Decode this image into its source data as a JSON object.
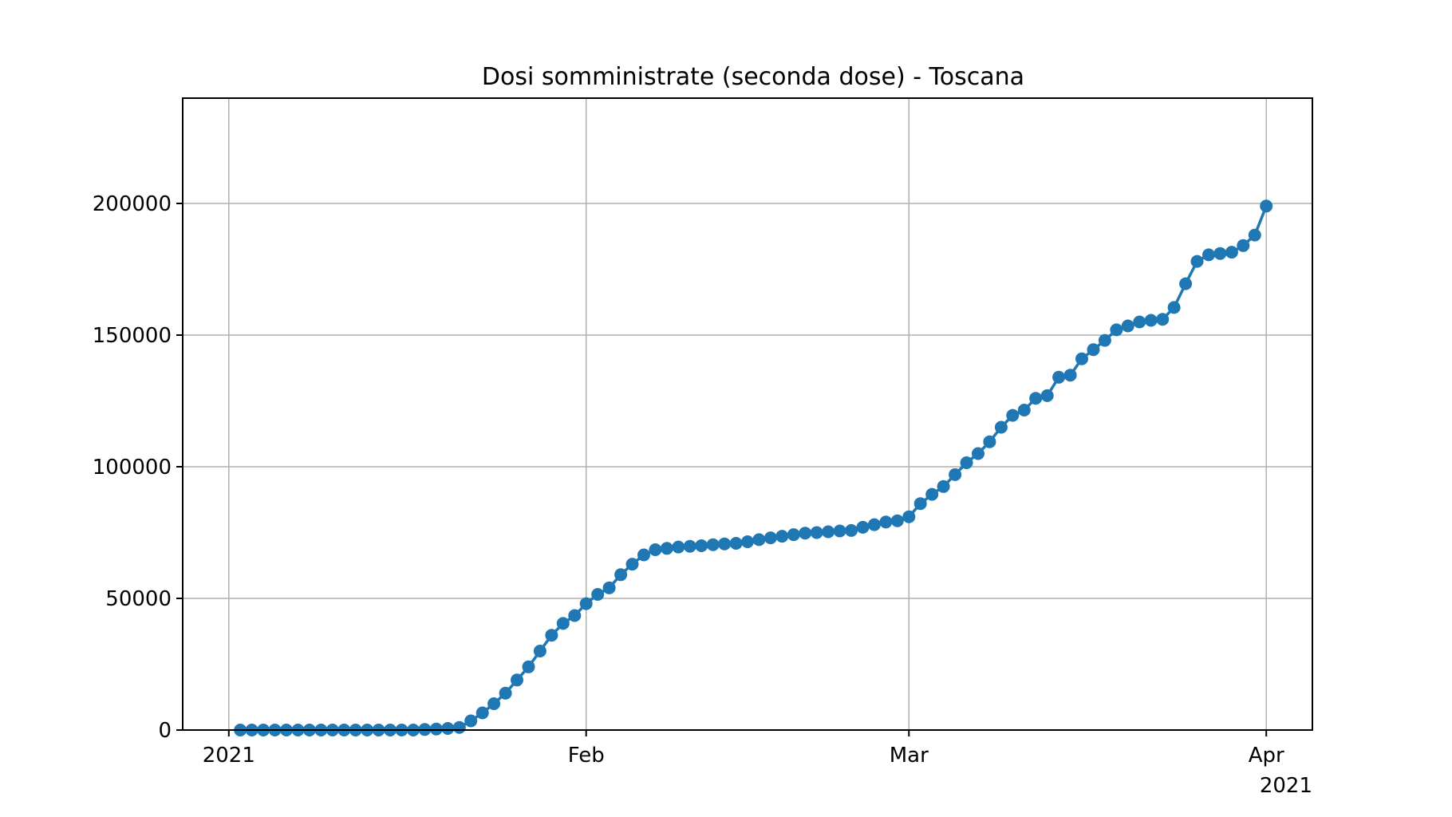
{
  "chart_data": {
    "type": "line",
    "title": "Dosi somministrate (seconda dose) - Toscana",
    "xlabel": "",
    "ylabel": "",
    "x_axis": {
      "type": "date",
      "range": [
        "2020-12-28",
        "2021-04-05"
      ],
      "ticks": [
        {
          "date": "2021-01-01",
          "label": "2021"
        },
        {
          "date": "2021-02-01",
          "label": "Feb"
        },
        {
          "date": "2021-03-01",
          "label": "Mar"
        },
        {
          "date": "2021-04-01",
          "label": "Apr"
        }
      ],
      "offset_label": "2021"
    },
    "y_axis": {
      "range": [
        0,
        240000
      ],
      "ticks": [
        0,
        50000,
        100000,
        150000,
        200000
      ],
      "tick_labels": [
        "0",
        "50000",
        "100000",
        "150000",
        "200000"
      ]
    },
    "grid": true,
    "color": "#1f77b4",
    "series": [
      {
        "x": [
          "2021-01-02",
          "2021-01-03",
          "2021-01-04",
          "2021-01-05",
          "2021-01-06",
          "2021-01-07",
          "2021-01-08",
          "2021-01-09",
          "2021-01-10",
          "2021-01-11",
          "2021-01-12",
          "2021-01-13",
          "2021-01-14",
          "2021-01-15",
          "2021-01-16",
          "2021-01-17",
          "2021-01-18",
          "2021-01-19",
          "2021-01-20",
          "2021-01-21",
          "2021-01-22",
          "2021-01-23",
          "2021-01-24",
          "2021-01-25",
          "2021-01-26",
          "2021-01-27",
          "2021-01-28",
          "2021-01-29",
          "2021-01-30",
          "2021-01-31",
          "2021-02-01",
          "2021-02-02",
          "2021-02-03",
          "2021-02-04",
          "2021-02-05",
          "2021-02-06",
          "2021-02-07",
          "2021-02-08",
          "2021-02-09",
          "2021-02-10",
          "2021-02-11",
          "2021-02-12",
          "2021-02-13",
          "2021-02-14",
          "2021-02-15",
          "2021-02-16",
          "2021-02-17",
          "2021-02-18",
          "2021-02-19",
          "2021-02-20",
          "2021-02-21",
          "2021-02-22",
          "2021-02-23",
          "2021-02-24",
          "2021-02-25",
          "2021-02-26",
          "2021-02-27",
          "2021-02-28",
          "2021-03-01",
          "2021-03-02",
          "2021-03-03",
          "2021-03-04",
          "2021-03-05",
          "2021-03-06",
          "2021-03-07",
          "2021-03-08",
          "2021-03-09",
          "2021-03-10",
          "2021-03-11",
          "2021-03-12",
          "2021-03-13",
          "2021-03-14",
          "2021-03-15",
          "2021-03-16",
          "2021-03-17",
          "2021-03-18",
          "2021-03-19",
          "2021-03-20",
          "2021-03-21",
          "2021-03-22",
          "2021-03-23",
          "2021-03-24",
          "2021-03-25",
          "2021-03-26",
          "2021-03-27",
          "2021-03-28",
          "2021-03-29",
          "2021-03-30",
          "2021-03-31",
          "2021-04-01"
        ],
        "values": [
          0,
          0,
          0,
          0,
          0,
          0,
          0,
          0,
          0,
          0,
          0,
          0,
          0,
          0,
          0,
          0,
          200,
          400,
          600,
          1000,
          3500,
          6500,
          10000,
          14000,
          19000,
          24000,
          30000,
          36000,
          40500,
          43500,
          48000,
          51500,
          54000,
          59000,
          63000,
          66500,
          68500,
          69000,
          69500,
          69800,
          70000,
          70400,
          70700,
          70900,
          71500,
          72300,
          73000,
          73600,
          74200,
          74800,
          75000,
          75300,
          75600,
          75800,
          77000,
          78000,
          79000,
          79500,
          81000,
          86000,
          89500,
          92500,
          97000,
          101500,
          105000,
          109500,
          115000,
          119500,
          121500,
          126000,
          127000,
          134000,
          134800,
          141000,
          144500,
          148000,
          152000,
          153500,
          155000,
          155600,
          156000,
          160500,
          169500,
          178000,
          180500,
          181000,
          181500,
          184000,
          188000,
          199000
        ]
      }
    ]
  }
}
